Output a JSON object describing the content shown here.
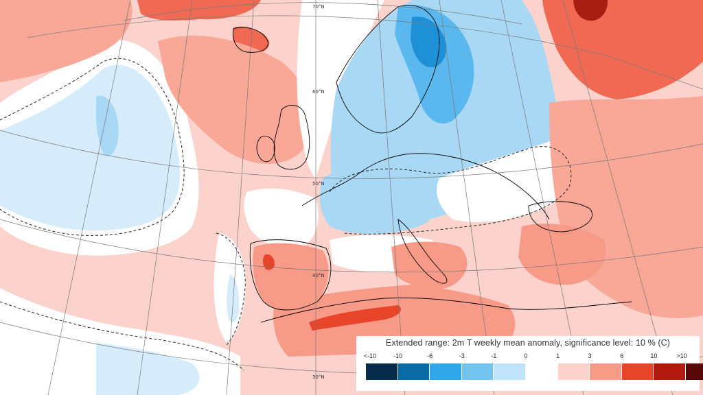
{
  "map": {
    "latitude_labels": [
      "70°N",
      "60°N",
      "50°N",
      "40°N",
      "30°N"
    ],
    "colors": {
      "ocean_warm": "#fbd3cc",
      "warm1": "#f9a797",
      "warm2": "#f06a53",
      "warm3": "#e8442a",
      "warm4": "#a61e0f",
      "neutral": "#ffffff",
      "cool1": "#d6ecfa",
      "cool2": "#a9d8f5",
      "cool3": "#5ab8ee",
      "cool4": "#1e90d6",
      "coast": "#000000",
      "grid": "#777777"
    }
  },
  "legend": {
    "title": "Extended range: 2m T weekly mean anomaly, significance level: 10 % (C)",
    "ticks": [
      "<-10",
      "-10",
      "-6",
      "-3",
      "-1",
      "0",
      "1",
      "3",
      "6",
      "10",
      ">10"
    ],
    "colors": [
      "#072c4a",
      "#0a6aa6",
      "#2fa7e8",
      "#74c4f0",
      "#bfe3f8",
      "#ffffff",
      "#fbd3cc",
      "#f79a88",
      "#e8442a",
      "#b3190e",
      "#580808"
    ]
  }
}
